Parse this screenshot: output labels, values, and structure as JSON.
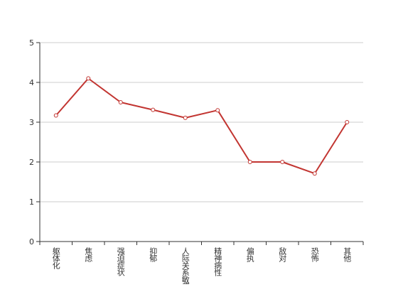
{
  "chart_data": {
    "type": "line",
    "categories": [
      "躯体化",
      "焦虑",
      "强迫症状",
      "抑郁",
      "人际关系敏感",
      "精神病性",
      "偏执",
      "敌对",
      "恐怖",
      "其他"
    ],
    "series": [
      {
        "values": [
          3.17,
          4.1,
          3.5,
          3.31,
          3.11,
          3.3,
          2.0,
          2.0,
          1.71,
          3.0
        ]
      }
    ],
    "yticks": [
      0,
      1,
      2,
      3,
      4,
      5
    ],
    "ylim": [
      0,
      5
    ],
    "grid": true,
    "colors": {
      "line": "#c23531",
      "grid": "#cccccc",
      "axis": "#333333"
    }
  }
}
